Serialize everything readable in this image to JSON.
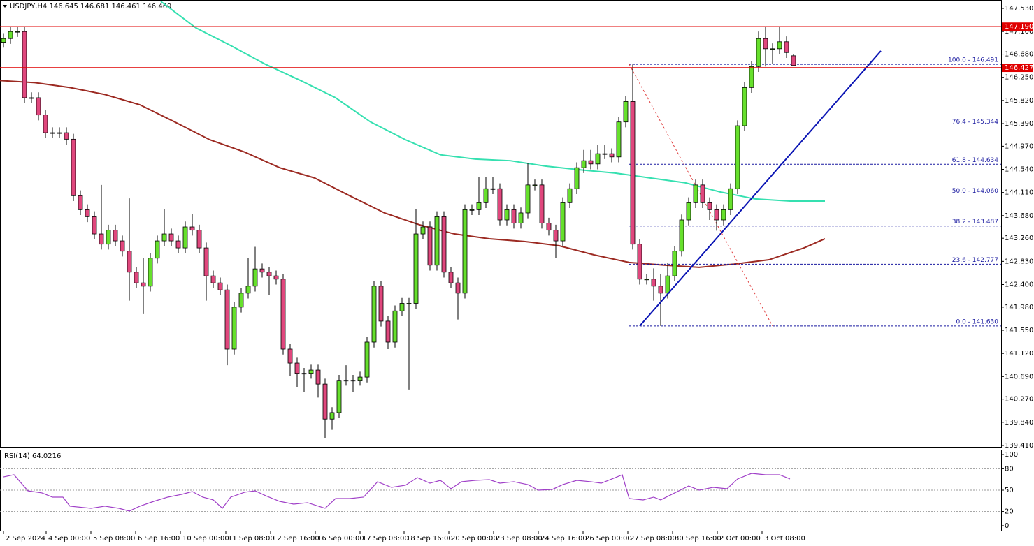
{
  "chart_data": [
    {
      "type": "candlestick",
      "title": "USDJPY,H4  146.645 146.681 146.461 146.469",
      "up_color": "#66e02c",
      "down_color": "#e0477d",
      "xlim": [
        -0.5,
        142.7
      ],
      "ylim": [
        139.384,
        147.66
      ],
      "yticks": [
        {
          "value": 147.53,
          "label": "147.530"
        },
        {
          "value": 147.1,
          "label": "147.100"
        },
        {
          "value": 146.68,
          "label": "146.680"
        },
        {
          "value": 146.25,
          "label": "146.250"
        },
        {
          "value": 145.82,
          "label": "145.820"
        },
        {
          "value": 145.39,
          "label": "145.390"
        },
        {
          "value": 144.97,
          "label": "144.970"
        },
        {
          "value": 144.54,
          "label": "144.540"
        },
        {
          "value": 144.11,
          "label": "144.110"
        },
        {
          "value": 143.68,
          "label": "143.680"
        },
        {
          "value": 143.26,
          "label": "143.260"
        },
        {
          "value": 142.83,
          "label": "142.830"
        },
        {
          "value": 142.4,
          "label": "142.400"
        },
        {
          "value": 141.98,
          "label": "141.980"
        },
        {
          "value": 141.55,
          "label": "141.550"
        },
        {
          "value": 141.12,
          "label": "141.120"
        },
        {
          "value": 140.69,
          "label": "140.690"
        },
        {
          "value": 140.27,
          "label": "140.270"
        },
        {
          "value": 139.84,
          "label": "139.840"
        },
        {
          "value": 139.41,
          "label": "139.410"
        }
      ],
      "xticks": [
        {
          "value": 0,
          "label": "2 Sep 2024"
        },
        {
          "value": 6.1,
          "label": "4 Sep 00:00"
        },
        {
          "value": 12.5,
          "label": "5 Sep 08:00"
        },
        {
          "value": 18.9,
          "label": "6 Sep 16:00"
        },
        {
          "value": 25.3,
          "label": "10 Sep 00:00"
        },
        {
          "value": 31.8,
          "label": "11 Sep 08:00"
        },
        {
          "value": 38.2,
          "label": "12 Sep 16:00"
        },
        {
          "value": 44.6,
          "label": "16 Sep 00:00"
        },
        {
          "value": 51,
          "label": "17 Sep 08:00"
        },
        {
          "value": 57.3,
          "label": "18 Sep 16:00"
        },
        {
          "value": 63.7,
          "label": "20 Sep 00:00"
        },
        {
          "value": 70.1,
          "label": "23 Sep 08:00"
        },
        {
          "value": 76.5,
          "label": "24 Sep 16:00"
        },
        {
          "value": 82.9,
          "label": "26 Sep 00:00"
        },
        {
          "value": 89.3,
          "label": "27 Sep 08:00"
        },
        {
          "value": 95.7,
          "label": "30 Sep 16:00"
        },
        {
          "value": 102.1,
          "label": "2 Oct 00:00"
        },
        {
          "value": 108.5,
          "label": "3 Oct 08:00"
        }
      ],
      "open": [
        146.9,
        146.97,
        147.1,
        147.1,
        145.87,
        145.87,
        145.55,
        145.22,
        145.22,
        145.22,
        145.1,
        144.05,
        143.79,
        143.66,
        143.34,
        143.15,
        143.41,
        143.21,
        143.02,
        142.63,
        142.43,
        142.37,
        142.89,
        143.21,
        143.34,
        143.21,
        143.08,
        143.47,
        143.41,
        143.08,
        142.56,
        142.43,
        142.3,
        141.2,
        141.98,
        142.24,
        142.37,
        142.69,
        142.63,
        142.56,
        142.5,
        141.2,
        140.94,
        140.75,
        140.75,
        140.81,
        140.55,
        139.9,
        140.02,
        140.62,
        140.62,
        140.62,
        140.68,
        141.33,
        142.37,
        141.72,
        141.33,
        141.91,
        142.05,
        142.05,
        143.34,
        143.47,
        142.76,
        143.66,
        142.63,
        142.43,
        142.24,
        143.79,
        143.79,
        143.92,
        144.18,
        144.18,
        143.6,
        143.79,
        143.54,
        143.73,
        144.25,
        144.25,
        143.54,
        143.41,
        143.21,
        143.92,
        144.18,
        144.57,
        144.7,
        144.64,
        144.83,
        144.83,
        144.77,
        145.42,
        145.8,
        143.15,
        142.5,
        142.5,
        142.37,
        142.24,
        142.56,
        143.02,
        143.6,
        143.92,
        144.25,
        143.92,
        143.79,
        143.6,
        143.79,
        144.18,
        145.35,
        146.06,
        146.45,
        146.97,
        146.78,
        146.78,
        146.91,
        146.65
      ],
      "high": [
        147.07,
        147.19,
        147.2,
        147.2,
        145.97,
        145.97,
        145.65,
        145.32,
        145.32,
        145.32,
        145.2,
        144.15,
        143.89,
        143.76,
        144.25,
        143.51,
        143.51,
        143.31,
        144.0,
        142.73,
        142.9,
        142.99,
        143.31,
        143.8,
        143.44,
        143.31,
        143.57,
        143.71,
        143.51,
        143.18,
        142.66,
        142.53,
        142.4,
        142.08,
        142.34,
        142.9,
        143.1,
        142.79,
        142.73,
        142.66,
        142.6,
        141.3,
        141.04,
        140.85,
        140.91,
        140.91,
        140.65,
        140.12,
        140.72,
        140.9,
        140.72,
        140.78,
        141.43,
        142.47,
        142.47,
        141.82,
        142.01,
        142.15,
        142.15,
        143.8,
        143.57,
        143.57,
        143.76,
        143.76,
        142.73,
        142.53,
        143.89,
        143.89,
        144.4,
        144.4,
        144.4,
        144.28,
        143.89,
        143.89,
        143.83,
        144.65,
        144.35,
        144.35,
        143.64,
        143.51,
        144.02,
        144.28,
        144.67,
        144.9,
        144.9,
        145.0,
        145.0,
        144.93,
        145.52,
        145.9,
        146.49,
        143.25,
        142.6,
        142.7,
        142.6,
        142.8,
        143.12,
        143.7,
        144.02,
        144.35,
        144.35,
        144.02,
        143.89,
        143.89,
        144.28,
        145.45,
        146.16,
        146.55,
        147.1,
        147.19,
        146.88,
        147.19,
        147.01,
        146.68
      ],
      "low": [
        146.8,
        146.87,
        147.0,
        145.77,
        145.77,
        145.45,
        145.12,
        145.12,
        145.12,
        145.0,
        143.95,
        143.69,
        143.56,
        143.24,
        143.05,
        143.05,
        143.11,
        142.92,
        142.1,
        142.33,
        141.85,
        142.27,
        142.79,
        143.11,
        143.11,
        142.98,
        142.98,
        143.31,
        142.98,
        142.1,
        142.33,
        142.2,
        140.9,
        141.1,
        141.88,
        142.14,
        142.27,
        142.53,
        142.2,
        142.4,
        141.1,
        140.7,
        140.5,
        140.4,
        140.65,
        140.3,
        139.55,
        139.7,
        139.92,
        140.52,
        140.4,
        140.52,
        140.58,
        141.23,
        141.62,
        141.2,
        141.23,
        141.81,
        140.45,
        141.95,
        143.24,
        142.66,
        142.66,
        142.53,
        142.33,
        141.75,
        142.14,
        143.69,
        143.69,
        143.82,
        144.08,
        143.5,
        143.5,
        143.44,
        143.44,
        143.63,
        144.15,
        143.44,
        143.31,
        142.9,
        143.11,
        143.82,
        144.08,
        144.47,
        144.54,
        144.54,
        144.73,
        144.67,
        144.67,
        145.32,
        143.05,
        142.4,
        142.4,
        142.1,
        141.63,
        142.14,
        142.46,
        142.92,
        143.5,
        143.82,
        143.82,
        143.6,
        143.4,
        143.5,
        143.69,
        144.08,
        145.25,
        145.96,
        146.35,
        146.45,
        146.5,
        146.68,
        146.61,
        146.46
      ],
      "close": [
        146.97,
        147.1,
        147.1,
        145.87,
        145.87,
        145.55,
        145.22,
        145.22,
        145.22,
        145.1,
        144.05,
        143.79,
        143.66,
        143.34,
        143.15,
        143.41,
        143.21,
        143.02,
        142.63,
        142.43,
        142.37,
        142.89,
        143.21,
        143.34,
        143.21,
        143.08,
        143.47,
        143.41,
        143.08,
        142.56,
        142.43,
        142.3,
        141.2,
        141.98,
        142.24,
        142.37,
        142.69,
        142.63,
        142.56,
        142.5,
        141.2,
        140.94,
        140.75,
        140.75,
        140.81,
        140.55,
        139.9,
        140.02,
        140.62,
        140.62,
        140.62,
        140.68,
        141.33,
        142.37,
        141.72,
        141.33,
        141.91,
        142.05,
        142.05,
        143.34,
        143.47,
        142.76,
        143.66,
        142.63,
        142.43,
        142.24,
        143.79,
        143.79,
        143.92,
        144.18,
        144.18,
        143.6,
        143.79,
        143.54,
        143.73,
        144.25,
        144.25,
        143.54,
        143.41,
        143.21,
        143.92,
        144.18,
        144.57,
        144.7,
        144.64,
        144.83,
        144.83,
        144.77,
        145.42,
        145.8,
        143.15,
        142.5,
        142.5,
        142.37,
        142.24,
        142.56,
        143.02,
        143.6,
        143.92,
        144.25,
        143.92,
        143.79,
        143.6,
        143.79,
        144.18,
        145.35,
        146.06,
        146.45,
        146.97,
        146.78,
        146.78,
        146.91,
        146.71,
        146.47
      ],
      "moving_averages": [
        {
          "color": "#35e0b0",
          "x": [
            22.5,
            27.5,
            32.5,
            37.5,
            42.5,
            47.5,
            52.5,
            57.5,
            62.5,
            67.5,
            72.5,
            77.5,
            82.5,
            87.5,
            92.5,
            97.5,
            102.5,
            107.5,
            112.5,
            117.5
          ],
          "values": [
            147.66,
            147.17,
            146.84,
            146.49,
            146.19,
            145.87,
            145.42,
            145.09,
            144.81,
            144.73,
            144.7,
            144.6,
            144.53,
            144.47,
            144.38,
            144.29,
            144.12,
            143.99,
            143.95,
            143.95
          ]
        },
        {
          "color": "#9c2a22",
          "x": [
            -0.5,
            4.5,
            9.5,
            14.5,
            19.5,
            24.5,
            29.5,
            34.5,
            39.5,
            44.5,
            49.5,
            54.5,
            59.5,
            64.5,
            69.5,
            74.5,
            79.5,
            84.5,
            89.5,
            94.5,
            99.5,
            104.5,
            109.5,
            114.5,
            117.5
          ],
          "values": [
            146.19,
            146.15,
            146.06,
            145.93,
            145.74,
            145.42,
            145.09,
            144.86,
            144.57,
            144.38,
            144.05,
            143.73,
            143.51,
            143.34,
            143.25,
            143.2,
            143.12,
            142.95,
            142.81,
            142.76,
            142.72,
            142.78,
            142.86,
            143.08,
            143.25
          ]
        }
      ],
      "price_line_color": "#e00000",
      "price_lines": [
        {
          "value": 147.19,
          "label": "147.190"
        },
        {
          "value": 146.427,
          "label": "146.427"
        }
      ],
      "fibonacci": {
        "color": "#1a1aa0",
        "diagonal_color": "#e04040",
        "anchor_x": [
          89.5,
          110
        ],
        "levels": [
          {
            "value": 146.491,
            "label": "100.0 - 146.491"
          },
          {
            "value": 145.344,
            "label": "76.4 - 145.344"
          },
          {
            "value": 144.634,
            "label": "61.8 - 144.634"
          },
          {
            "value": 144.06,
            "label": "50.0 - 144.060"
          },
          {
            "value": 143.487,
            "label": "38.2 - 143.487"
          },
          {
            "value": 142.777,
            "label": "23.6 - 142.777"
          },
          {
            "value": 141.63,
            "label": "0.0 - 141.630"
          }
        ]
      },
      "trendline": {
        "color": "#0a14b4",
        "x": [
          91,
          125.5
        ],
        "values": [
          141.63,
          146.74
        ]
      }
    },
    {
      "type": "line",
      "title": "RSI(14) 64.0216",
      "color": "#a040c8",
      "xlim": [
        -0.5,
        142.7
      ],
      "ylim": [
        -6.9,
        105.9
      ],
      "yticks": [
        0,
        20,
        50,
        80,
        100
      ],
      "levels": [
        20,
        50,
        80
      ],
      "x": [
        0,
        1.5,
        3.5,
        5.5,
        7,
        8.5,
        9.5,
        12.5,
        14.5,
        16.5,
        18,
        19.5,
        21.5,
        23.5,
        25.5,
        27,
        28.5,
        30,
        31.3,
        32.5,
        34.5,
        36,
        37.5,
        39.5,
        41.5,
        43.5,
        46,
        47.5,
        49.5,
        51.5,
        53.5,
        55.5,
        57.5,
        59.2,
        61,
        62.5,
        64,
        65.5,
        67.5,
        69.5,
        71,
        73,
        75,
        76.5,
        78.5,
        80,
        82,
        84,
        85.5,
        87.5,
        88.5,
        89.5,
        91.5,
        93,
        94,
        96,
        98,
        99.5,
        101.5,
        103.5,
        105,
        107,
        109,
        111,
        112.5
      ],
      "values": [
        68.6,
        71.6,
        49.0,
        46.1,
        40.2,
        40.2,
        27.5,
        24.5,
        27.5,
        24.5,
        20.6,
        27.5,
        34.3,
        40.2,
        44.1,
        48.0,
        40.2,
        36.3,
        24.5,
        40.2,
        47.1,
        49.0,
        42.2,
        34.3,
        30.4,
        32.4,
        24.5,
        38.2,
        38.2,
        40.2,
        61.8,
        53.9,
        56.9,
        67.6,
        59.8,
        63.7,
        52.0,
        61.8,
        63.7,
        64.7,
        59.8,
        61.8,
        57.8,
        50.0,
        51.0,
        57.8,
        63.7,
        61.8,
        59.8,
        67.6,
        71.6,
        38.2,
        36.3,
        40.2,
        36.3,
        46.1,
        55.9,
        50.0,
        53.9,
        52.0,
        65.7,
        73.5,
        71.6,
        71.6,
        65.7
      ]
    }
  ]
}
